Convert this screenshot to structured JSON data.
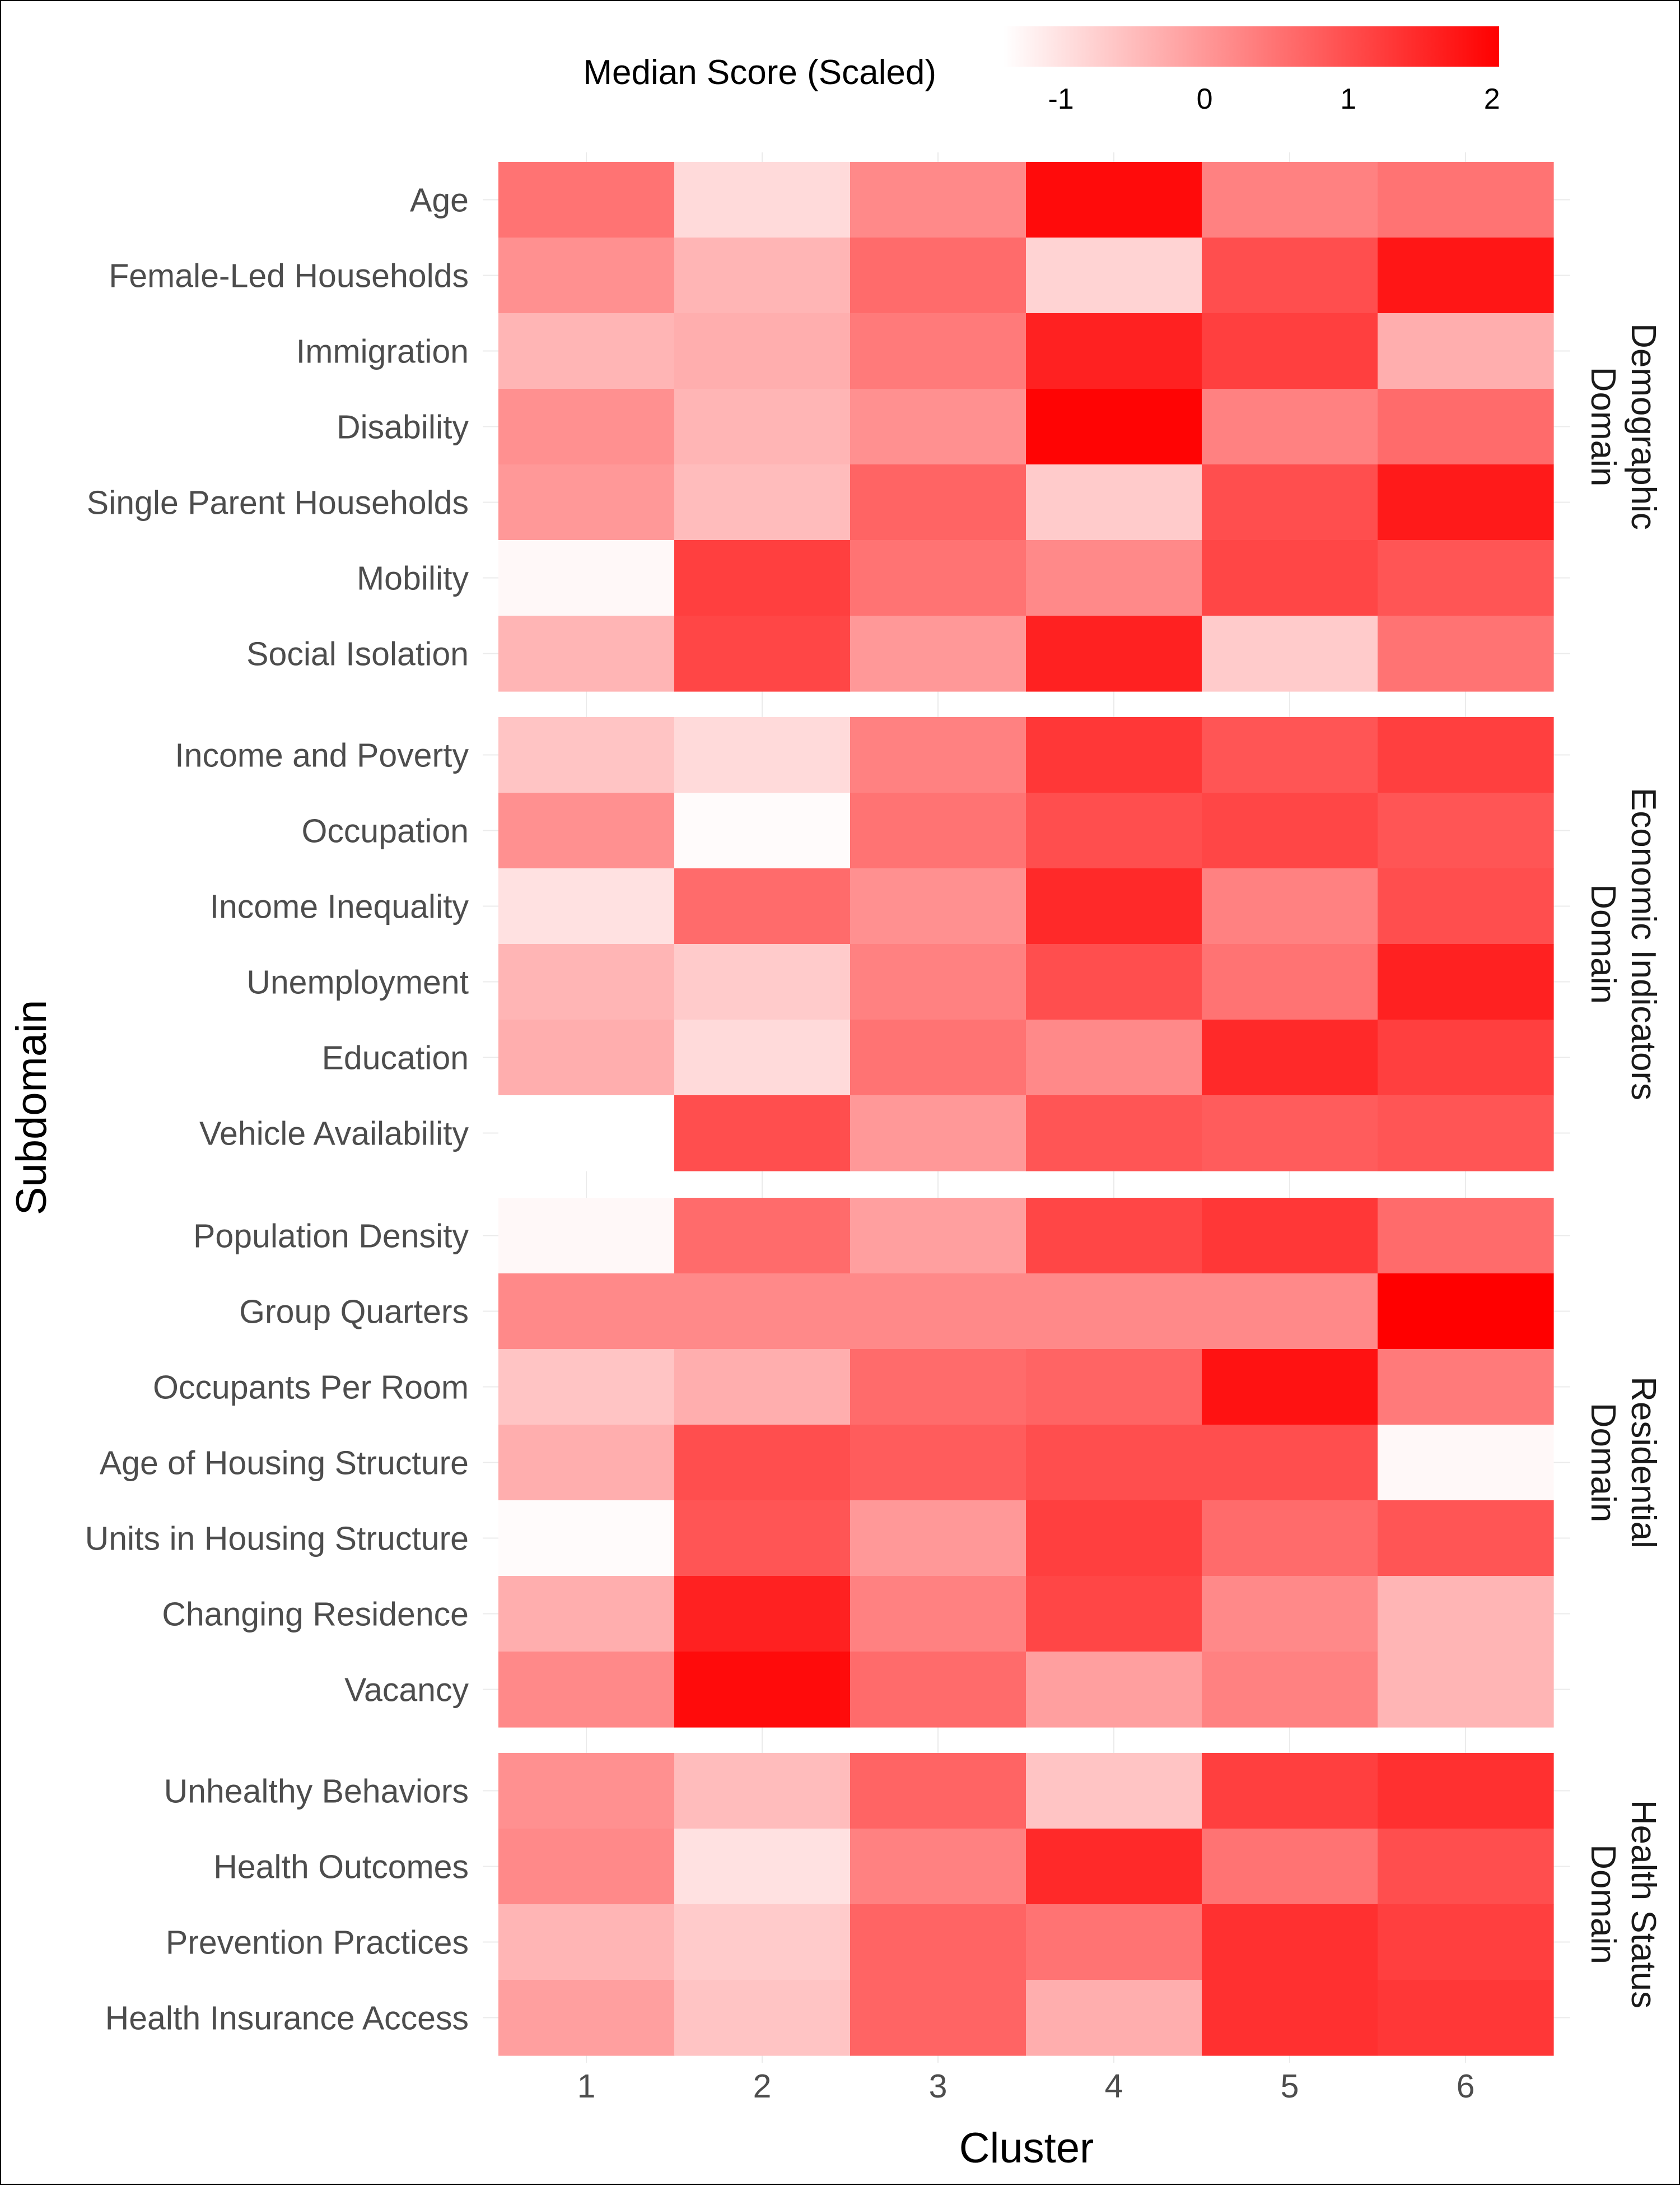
{
  "chart_data": {
    "type": "heatmap",
    "xlabel": "Cluster",
    "ylabel": "Subdomain",
    "categories": [
      "1",
      "2",
      "3",
      "4",
      "5",
      "6"
    ],
    "legend": {
      "title": "Median Score (Scaled)",
      "ticks": [
        "-1",
        "0",
        "1",
        "2"
      ],
      "range": [
        -1.4,
        2.05
      ],
      "placement": "top",
      "low_color": "#ffffff",
      "high_color": "#ff0000"
    },
    "panels": [
      {
        "name": "Demographic Domain",
        "strip_lines": [
          "Demographic",
          "Domain"
        ],
        "rows": [
          {
            "label": "Age",
            "values": [
              0.5,
              -0.9,
              0.2,
              1.9,
              0.3,
              0.5
            ]
          },
          {
            "label": "Female-Led Households",
            "values": [
              0.1,
              -0.4,
              0.6,
              -0.8,
              1.0,
              1.75
            ]
          },
          {
            "label": "Immigration",
            "values": [
              -0.4,
              -0.3,
              0.4,
              1.6,
              1.2,
              -0.3
            ]
          },
          {
            "label": "Disability",
            "values": [
              0.1,
              -0.4,
              0.1,
              2.0,
              0.3,
              0.6
            ]
          },
          {
            "label": "Single Parent Households",
            "values": [
              0.0,
              -0.5,
              0.7,
              -0.7,
              1.0,
              1.7
            ]
          },
          {
            "label": "Mobility",
            "values": [
              -1.3,
              1.2,
              0.5,
              0.2,
              1.1,
              0.9
            ]
          },
          {
            "label": "Social Isolation",
            "values": [
              -0.4,
              1.1,
              0.0,
              1.6,
              -0.7,
              0.5
            ]
          }
        ]
      },
      {
        "name": "Economic Indicators Domain",
        "strip_lines": [
          "Economic Indicators",
          "Domain"
        ],
        "rows": [
          {
            "label": "Income and Poverty",
            "values": [
              -0.6,
              -0.9,
              0.3,
              1.3,
              0.9,
              1.2
            ]
          },
          {
            "label": "Occupation",
            "values": [
              0.1,
              -1.35,
              0.5,
              1.0,
              1.1,
              0.9
            ]
          },
          {
            "label": "Income Inequality",
            "values": [
              -1.0,
              0.6,
              0.1,
              1.5,
              0.3,
              1.0
            ]
          },
          {
            "label": "Unemployment",
            "values": [
              -0.4,
              -0.7,
              0.3,
              1.0,
              0.5,
              1.6
            ]
          },
          {
            "label": "Education",
            "values": [
              -0.3,
              -0.9,
              0.5,
              0.2,
              1.5,
              1.2
            ]
          },
          {
            "label": "Vehicle Availability",
            "values": [
              -1.4,
              1.0,
              0.0,
              0.9,
              0.8,
              0.9
            ]
          }
        ]
      },
      {
        "name": "Residential Domain",
        "strip_lines": [
          "Residential",
          "Domain"
        ],
        "rows": [
          {
            "label": "Population Density",
            "values": [
              -1.3,
              0.6,
              -0.1,
              1.1,
              1.3,
              0.6
            ]
          },
          {
            "label": "Group Quarters",
            "values": [
              0.2,
              0.2,
              0.2,
              0.2,
              0.2,
              2.05
            ]
          },
          {
            "label": "Occupants Per Room",
            "values": [
              -0.6,
              -0.3,
              0.6,
              0.7,
              1.8,
              0.4
            ]
          },
          {
            "label": "Age of Housing Structure",
            "values": [
              -0.3,
              1.0,
              0.8,
              1.0,
              1.0,
              -1.3
            ]
          },
          {
            "label": "Units in Housing Structure",
            "values": [
              -1.35,
              0.9,
              0.0,
              1.2,
              0.6,
              0.9
            ]
          },
          {
            "label": "Changing Residence",
            "values": [
              -0.3,
              1.6,
              0.3,
              1.1,
              0.2,
              -0.4
            ]
          },
          {
            "label": "Vacancy",
            "values": [
              0.2,
              1.9,
              0.6,
              -0.1,
              0.3,
              -0.4
            ]
          }
        ]
      },
      {
        "name": "Health Status Domain",
        "strip_lines": [
          "Health Status",
          "Domain"
        ],
        "rows": [
          {
            "label": "Unhealthy Behaviors",
            "values": [
              0.1,
              -0.5,
              0.7,
              -0.6,
              1.2,
              1.4
            ]
          },
          {
            "label": "Health Outcomes",
            "values": [
              0.2,
              -1.0,
              0.3,
              1.5,
              0.5,
              1.0
            ]
          },
          {
            "label": "Prevention Practices",
            "values": [
              -0.4,
              -0.7,
              0.7,
              0.5,
              1.4,
              1.2
            ]
          },
          {
            "label": "Health Insurance Access",
            "values": [
              -0.1,
              -0.6,
              0.7,
              -0.3,
              1.4,
              1.3
            ]
          }
        ]
      }
    ]
  }
}
